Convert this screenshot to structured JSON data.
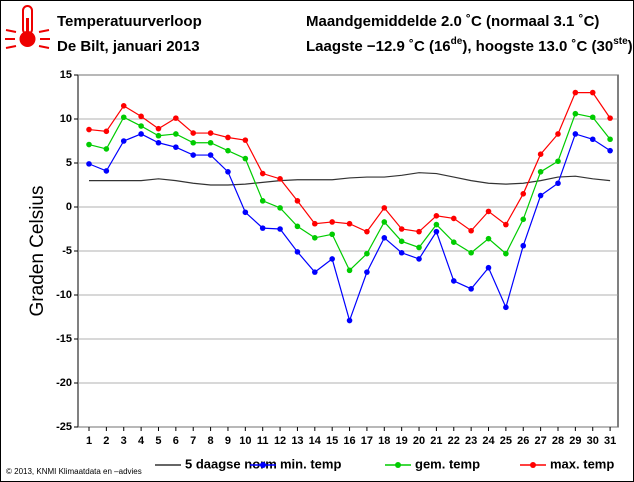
{
  "chart_data": {
    "type": "line",
    "header": {
      "title": "Temperatuurverloop",
      "subtitle": "De Bilt, januari 2013",
      "summary": "Maandgemiddelde 2.0 ˚C (normaal 3.1 ˚C)",
      "extremes": [
        "Laagste −12.9 ˚C (16",
        "de",
        "), hoogste 13.0 ˚C (30",
        "ste",
        ")"
      ]
    },
    "y_label": "Graden Celsius",
    "footer": "© 2013, KNMI Klimaatdata en –advies",
    "categories": [
      "1",
      "2",
      "3",
      "4",
      "5",
      "6",
      "7",
      "8",
      "9",
      "10",
      "11",
      "12",
      "13",
      "14",
      "15",
      "16",
      "17",
      "18",
      "19",
      "20",
      "21",
      "22",
      "23",
      "24",
      "25",
      "26",
      "27",
      "28",
      "29",
      "30",
      "31"
    ],
    "ylim": [
      -25,
      15
    ],
    "yticks": [
      -25,
      -20,
      -15,
      -10,
      -5,
      0,
      5,
      10,
      15
    ],
    "grid": true,
    "series": [
      {
        "name": "5 daagse norm",
        "color": "#333333",
        "markers": false,
        "values": [
          3.0,
          3.0,
          3.0,
          3.0,
          3.2,
          3.0,
          2.7,
          2.5,
          2.5,
          2.6,
          2.8,
          3.0,
          3.1,
          3.1,
          3.1,
          3.3,
          3.4,
          3.4,
          3.6,
          3.9,
          3.8,
          3.4,
          3.0,
          2.7,
          2.6,
          2.7,
          3.0,
          3.4,
          3.5,
          3.2,
          3.0
        ]
      },
      {
        "name": "min. temp",
        "color": "#0000ff",
        "markers": true,
        "values": [
          4.9,
          4.1,
          7.5,
          8.3,
          7.3,
          6.8,
          5.9,
          5.9,
          4.0,
          -0.6,
          -2.4,
          -2.5,
          -5.1,
          -7.4,
          -5.9,
          -12.9,
          -7.4,
          -3.5,
          -5.2,
          -5.9,
          -2.8,
          -8.4,
          -9.3,
          -6.9,
          -11.4,
          -4.4,
          1.3,
          2.7,
          8.3,
          7.7,
          6.4
        ]
      },
      {
        "name": "gem. temp",
        "color": "#00cc00",
        "markers": true,
        "values": [
          7.1,
          6.6,
          10.2,
          9.2,
          8.1,
          8.3,
          7.3,
          7.3,
          6.4,
          5.5,
          0.7,
          -0.1,
          -2.2,
          -3.5,
          -3.1,
          -7.2,
          -5.3,
          -1.7,
          -3.9,
          -4.6,
          -2.0,
          -4.0,
          -5.2,
          -3.6,
          -5.3,
          -1.4,
          4.0,
          5.2,
          10.6,
          10.2,
          7.7
        ]
      },
      {
        "name": "max. temp",
        "color": "#ff0000",
        "markers": true,
        "values": [
          8.8,
          8.6,
          11.5,
          10.3,
          8.9,
          10.1,
          8.4,
          8.4,
          7.9,
          7.6,
          3.8,
          3.2,
          0.7,
          -1.9,
          -1.7,
          -1.9,
          -2.8,
          -0.1,
          -2.5,
          -2.8,
          -1.0,
          -1.3,
          -2.7,
          -0.5,
          -2.0,
          1.5,
          6.0,
          8.3,
          13.0,
          13.0,
          10.1
        ]
      }
    ]
  }
}
